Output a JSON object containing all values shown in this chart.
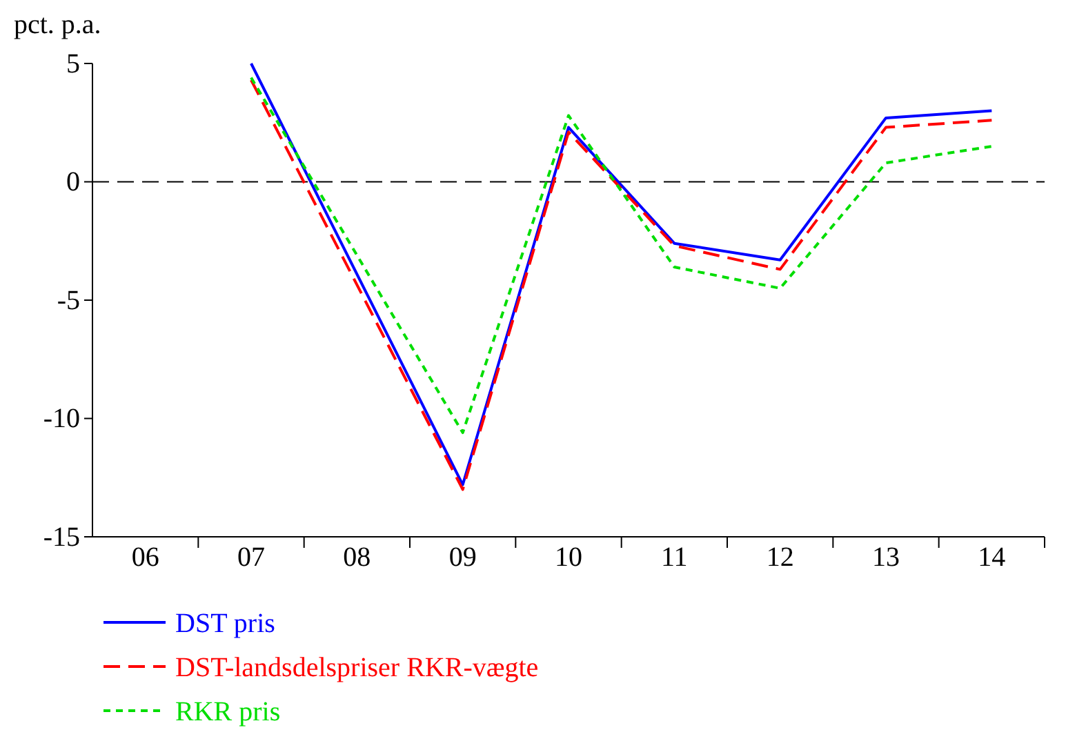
{
  "chart_data": {
    "type": "line",
    "ylabel": "pct. p.a.",
    "categories": [
      "06",
      "07",
      "08",
      "09",
      "10",
      "11",
      "12",
      "13",
      "14"
    ],
    "ylim": [
      -15,
      5
    ],
    "yticks": [
      -15,
      -10,
      -5,
      0,
      5
    ],
    "grid": false,
    "legend": "bottom left",
    "ref_lines": [
      {
        "axis": "y",
        "value": 0,
        "color": "#000000",
        "line_style": "dashed"
      }
    ],
    "series": [
      {
        "name": "DST pris",
        "color": "#0000ff",
        "line_style": "solid",
        "values": [
          null,
          5.0,
          null,
          -12.8,
          2.3,
          -2.6,
          -3.3,
          2.7,
          3.0
        ]
      },
      {
        "name": "DST-landsdelspriser RKR-vægte",
        "color": "#ff0000",
        "line_style": "dashed",
        "values": [
          null,
          4.3,
          null,
          -13.0,
          2.1,
          -2.7,
          -3.7,
          2.3,
          2.6
        ]
      },
      {
        "name": "RKR pris",
        "color": "#00dd00",
        "line_style": "dotted",
        "values": [
          null,
          4.4,
          null,
          -10.6,
          2.8,
          -3.6,
          -4.5,
          0.8,
          1.5
        ]
      }
    ]
  }
}
